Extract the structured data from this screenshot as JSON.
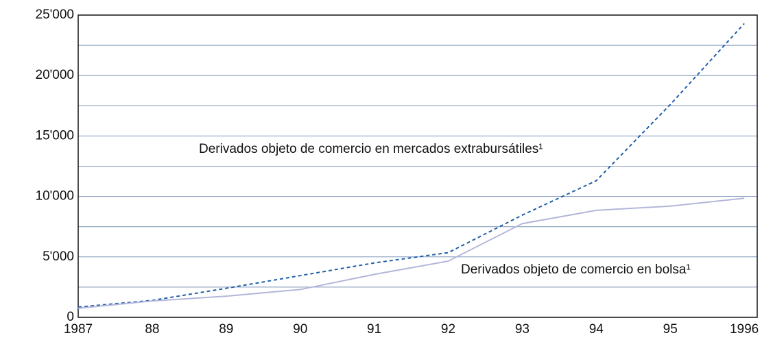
{
  "chart_data": {
    "type": "line",
    "categories": [
      "1987",
      "88",
      "89",
      "90",
      "91",
      "92",
      "93",
      "94",
      "95",
      "1996"
    ],
    "series": [
      {
        "name": "Derivados objeto de comercio en mercados extrabursátiles¹",
        "color": "#1f5fa8",
        "dashed": true,
        "values": [
          850,
          1400,
          2400,
          3450,
          4500,
          5350,
          8450,
          11300,
          17600,
          24300
        ]
      },
      {
        "name": "Derivados objeto de comercio en bolsa¹",
        "color": "#b3b6d9",
        "dashed": false,
        "values": [
          750,
          1350,
          1750,
          2300,
          3550,
          4650,
          7750,
          8850,
          9200,
          9850
        ]
      }
    ],
    "ylim": [
      0,
      25000
    ],
    "yticks": [
      0,
      {
        "value": 5000,
        "label": "5'000"
      },
      {
        "value": 10000,
        "label": "10'000"
      },
      {
        "value": 15000,
        "label": "15'000"
      },
      {
        "value": 20000,
        "label": "20'000"
      },
      {
        "value": 25000,
        "label": "25'000"
      }
    ],
    "minor_yticks": [
      2500,
      7500,
      12500,
      17500,
      22500
    ],
    "grid": true
  }
}
